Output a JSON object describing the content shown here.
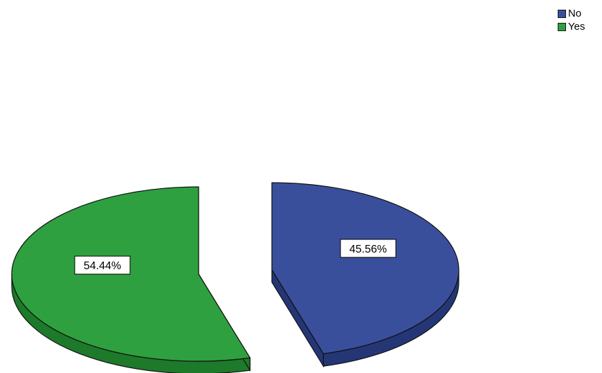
{
  "chart_data": {
    "type": "pie",
    "series": [
      {
        "name": "No",
        "value": 45.56,
        "label": "45.56%",
        "color": "#3a4f9c",
        "side_color": "#243675"
      },
      {
        "name": "Yes",
        "value": 54.44,
        "label": "54.44%",
        "color": "#2ea040",
        "side_color": "#1d7a2a"
      }
    ],
    "style": "3d-exploded",
    "legend": {
      "position": "top-right",
      "entries": [
        "No",
        "Yes"
      ]
    }
  }
}
